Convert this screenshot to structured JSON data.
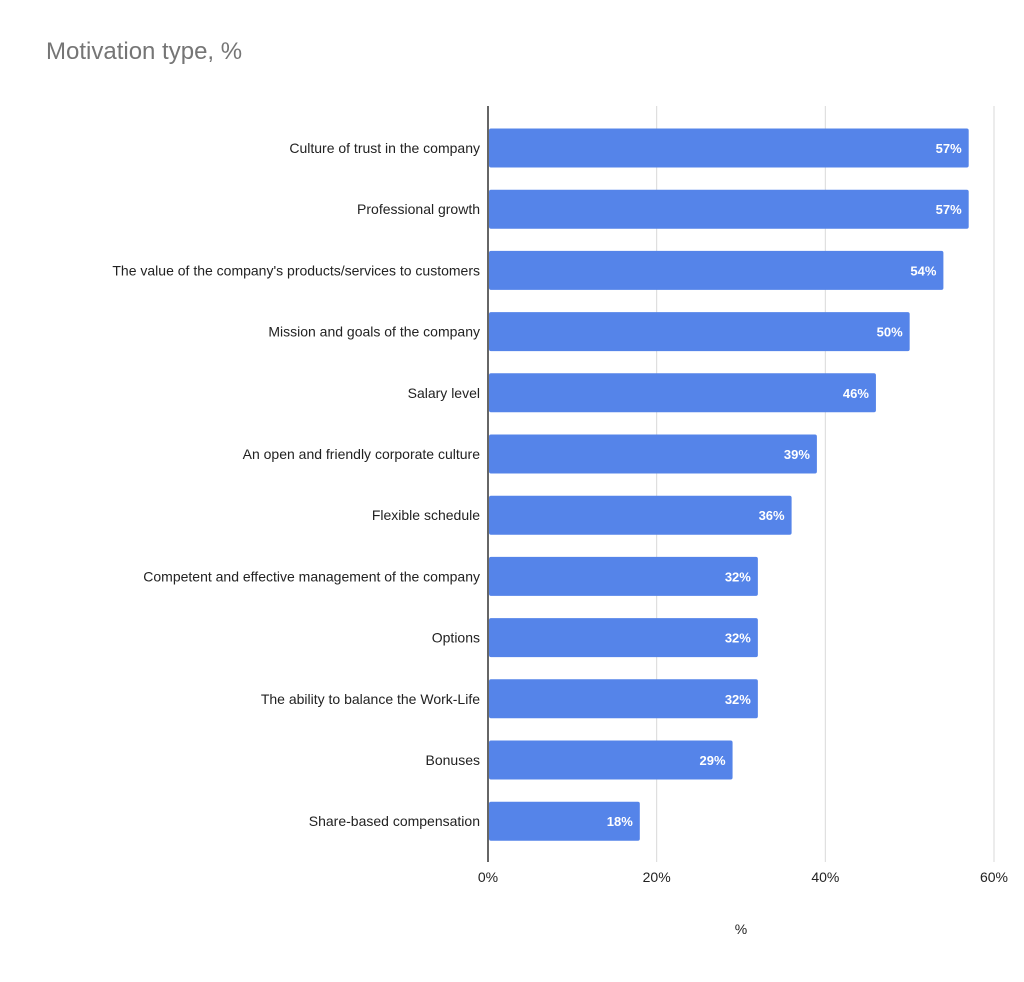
{
  "chart_data": {
    "type": "bar",
    "orientation": "horizontal",
    "title": "Motivation type, %",
    "xlabel": "%",
    "ylabel": "",
    "categories": [
      "Culture of trust in the company",
      "Professional growth",
      "The value of the company's products/services to customers",
      "Mission and goals of the company",
      "Salary level",
      "An open and friendly corporate culture",
      "Flexible schedule",
      "Competent and effective management of the company",
      "Options",
      "The ability to balance the Work-Life",
      "Bonuses",
      "Share-based compensation"
    ],
    "values": [
      57,
      57,
      54,
      50,
      46,
      39,
      36,
      32,
      32,
      32,
      29,
      18
    ],
    "data_labels": [
      "57%",
      "57%",
      "54%",
      "50%",
      "46%",
      "39%",
      "36%",
      "32%",
      "32%",
      "32%",
      "29%",
      "18%"
    ],
    "xlim": [
      0,
      60
    ],
    "x_ticks": [
      "0%",
      "20%",
      "40%",
      "60%"
    ],
    "grid": true,
    "bar_color": "#5584e9"
  }
}
